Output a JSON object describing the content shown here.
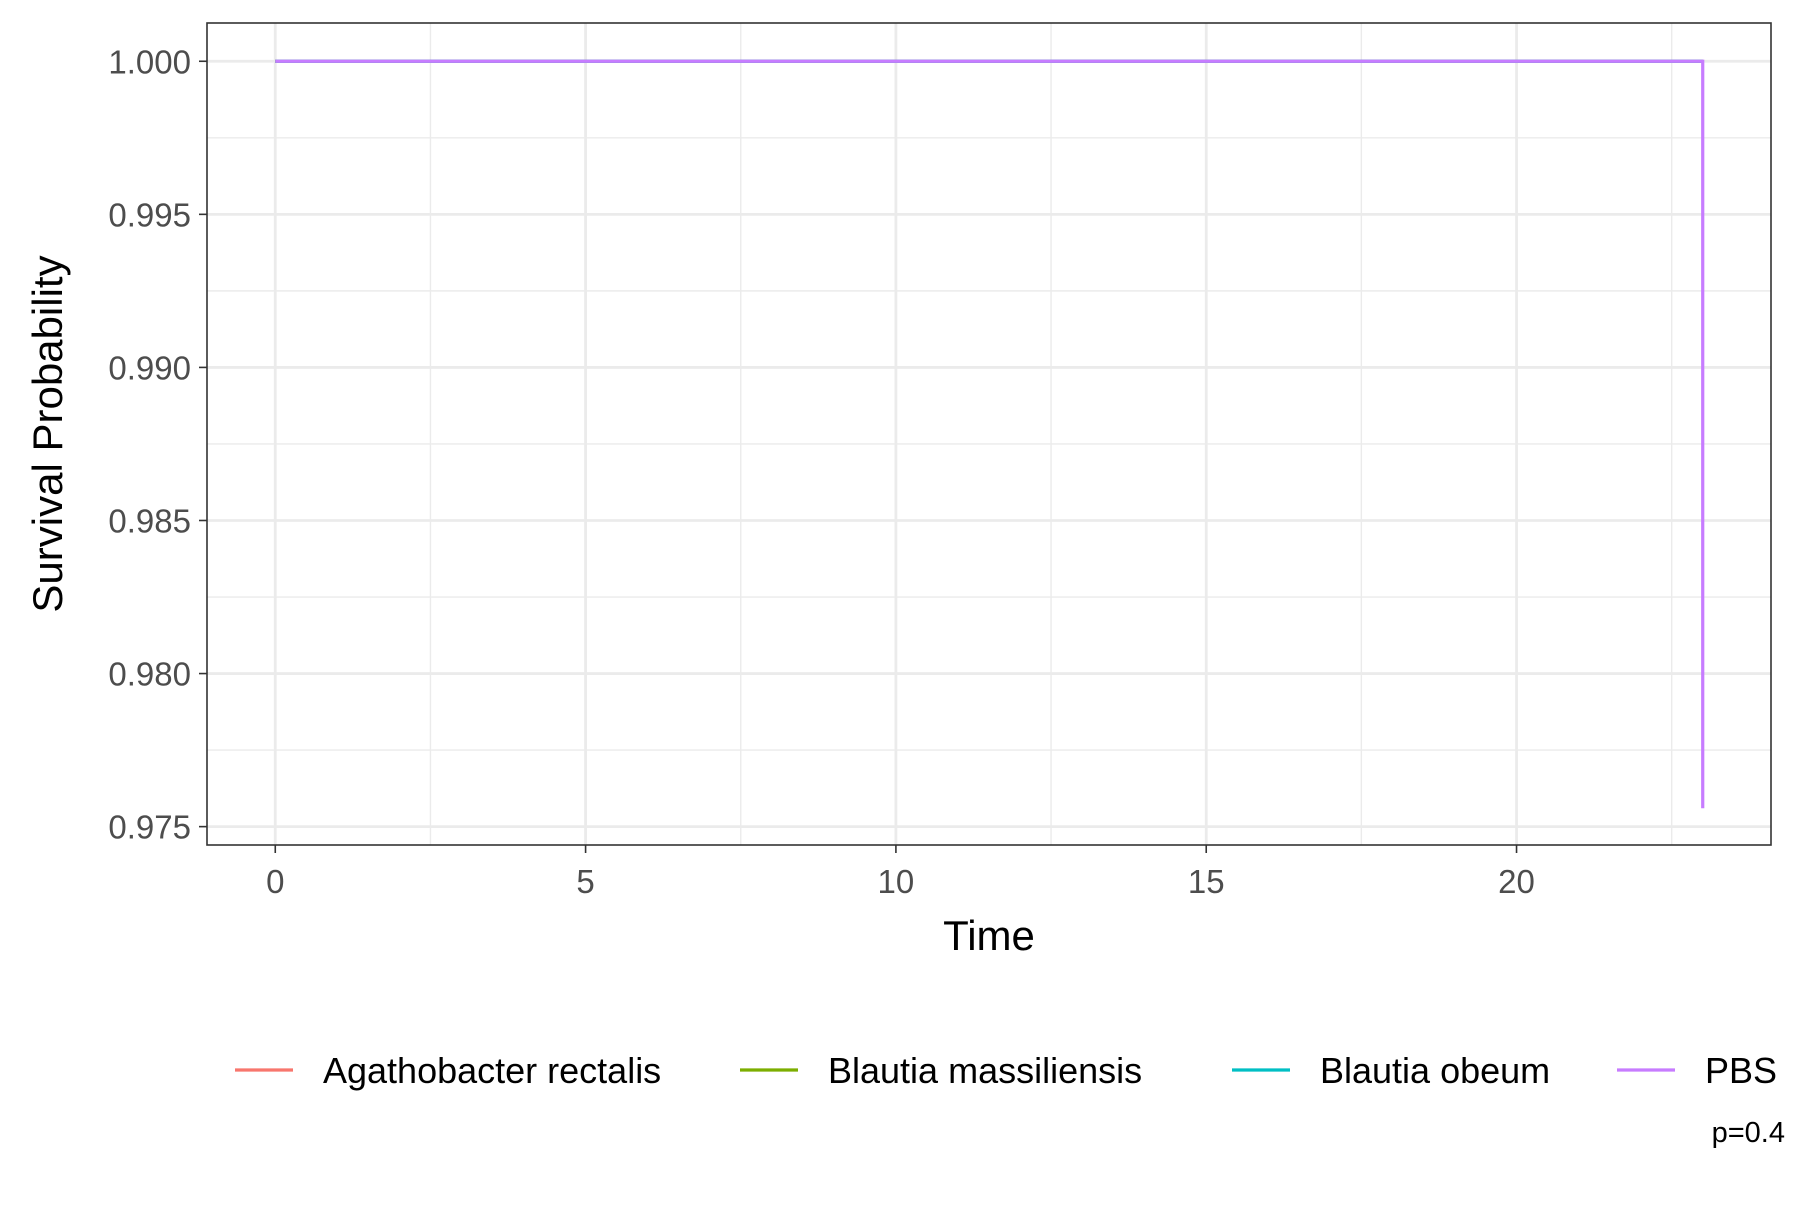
{
  "chart_data": {
    "type": "line",
    "step": true,
    "title": "",
    "xlabel": "Time",
    "ylabel": "Survival Probability",
    "xlim": [
      -1.1,
      24.1
    ],
    "ylim": [
      0.9744,
      1.00125
    ],
    "x_ticks": [
      0,
      5,
      10,
      15,
      20
    ],
    "x_minor_ticks": [
      2.5,
      7.5,
      12.5,
      17.5,
      22.5
    ],
    "y_ticks": [
      0.975,
      0.98,
      0.985,
      0.99,
      0.995,
      1.0
    ],
    "y_tick_labels": [
      "0.975",
      "0.980",
      "0.985",
      "0.990",
      "0.995",
      "1.000"
    ],
    "y_minor_ticks": [
      0.9775,
      0.9825,
      0.9875,
      0.9925,
      0.9975
    ],
    "grid": true,
    "legend_position": "bottom",
    "series": [
      {
        "name": "Agathobacter rectalis",
        "color": "#F8766D",
        "x": [
          0,
          23
        ],
        "y": [
          1.0,
          1.0
        ]
      },
      {
        "name": "Blautia massiliensis",
        "color": "#7CAE00",
        "x": [
          0,
          23
        ],
        "y": [
          1.0,
          1.0
        ]
      },
      {
        "name": "Blautia obeum",
        "color": "#00BFC4",
        "x": [
          0,
          23
        ],
        "y": [
          1.0,
          1.0
        ]
      },
      {
        "name": "PBS",
        "color": "#C77CFF",
        "x": [
          0,
          23,
          23
        ],
        "y": [
          1.0,
          1.0,
          0.9756
        ]
      }
    ],
    "annotation": "p=0.4"
  }
}
